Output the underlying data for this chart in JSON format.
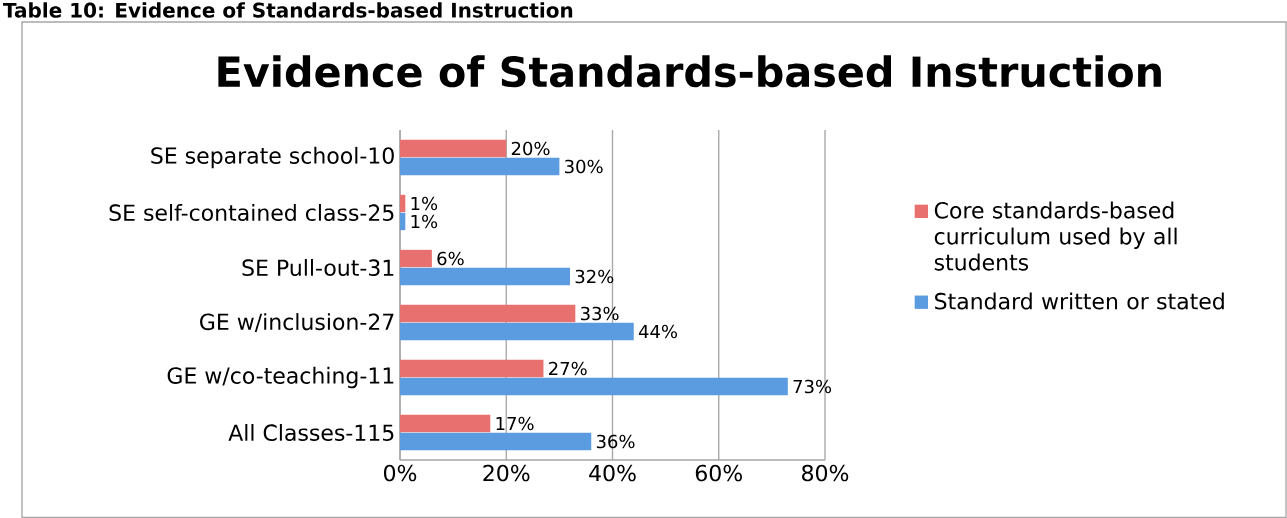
{
  "chart_data": {
    "type": "bar",
    "orientation": "horizontal",
    "title": "Evidence of Standards-based Instruction",
    "annotations": [
      "Table 10: Evidence of Standards-based Instruction"
    ],
    "categories": [
      "SE separate school-10",
      "SE self-contained class-25",
      "SE Pull-out-31",
      "GE w/inclusion-27",
      "GE w/co-teaching-11",
      "All Classes-115"
    ],
    "series": [
      {
        "name": "Core standards-based curriculum used by all students",
        "color": "#e8706e",
        "values": [
          20,
          1,
          6,
          33,
          27,
          17
        ],
        "value_labels": [
          "20%",
          "1%",
          "6%",
          "33%",
          "27%",
          "17%"
        ]
      },
      {
        "name": "Standard written or stated",
        "color": "#5b9be0",
        "values": [
          30,
          1,
          32,
          44,
          73,
          36
        ],
        "value_labels": [
          "30%",
          "1%",
          "32%",
          "44%",
          "73%",
          "36%"
        ]
      }
    ],
    "xlim": [
      0,
      80
    ],
    "xticks": [
      {
        "value": 0,
        "label": "0%"
      },
      {
        "value": 20,
        "label": "20%"
      },
      {
        "value": 40,
        "label": "40%"
      },
      {
        "value": 60,
        "label": "60%"
      },
      {
        "value": 80,
        "label": "80%"
      }
    ],
    "grid": "x",
    "legend": "right"
  }
}
